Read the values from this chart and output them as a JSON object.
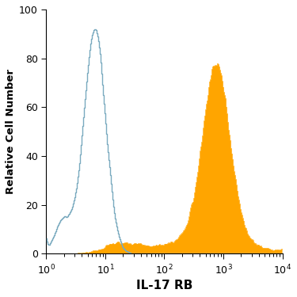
{
  "title": "",
  "xlabel": "IL-17 RB",
  "ylabel": "Relative Cell Number",
  "xlim_log": [
    0,
    4
  ],
  "ylim": [
    0,
    100
  ],
  "yticks": [
    0,
    20,
    40,
    60,
    80,
    100
  ],
  "background_color": "#ffffff",
  "isotype_color": "#7aaabf",
  "filled_color": "#FFA500",
  "isotype_peak_log": 0.82,
  "isotype_peak_val": 92,
  "filled_peak_log": 2.88,
  "filled_peak_val": 78,
  "n_bins": 300
}
